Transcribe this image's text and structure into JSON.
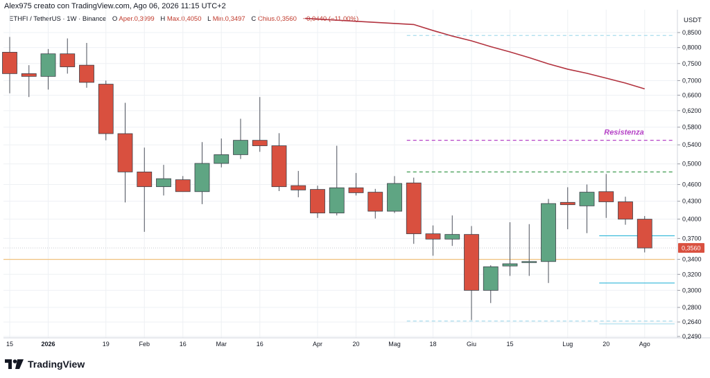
{
  "header": {
    "credit": "Alex975 creato con TradingView.com, Ago 06, 2026 11:15 UTC+2"
  },
  "legend": {
    "symbol": "ETHFI / TetherUS · 1W · Binance",
    "open_label": "O",
    "open_text": "Aper.0,3999",
    "high_label": "H",
    "high_text": "Max.0,4050",
    "low_label": "L",
    "low_text": "Min.0,3497",
    "close_label": "C",
    "close_text": "Chius.0,3560",
    "change_text": "−0,0440 (−11,00%)"
  },
  "currency": "USDT",
  "logo": {
    "text": "TradingView"
  },
  "colors": {
    "up": "#5fa583",
    "down": "#d9503f",
    "ma": "#b2323e",
    "price_line": "#d9503f",
    "resistance": "#b542c6",
    "green_dash": "#3e9b4f",
    "cyan": "#2fb6d9",
    "light_cyan": "#a8dcec",
    "orange": "#f1c27d"
  },
  "chart_data": {
    "type": "candlestick",
    "y_scale": "log",
    "ylim": [
      0.238,
      0.9
    ],
    "y_ticks": [
      {
        "label": "0,8500",
        "value": 0.85
      },
      {
        "label": "0,8000",
        "value": 0.8
      },
      {
        "label": "0,7500",
        "value": 0.75
      },
      {
        "label": "0,7000",
        "value": 0.7
      },
      {
        "label": "0,6600",
        "value": 0.66
      },
      {
        "label": "0,6200",
        "value": 0.62
      },
      {
        "label": "0,5800",
        "value": 0.58
      },
      {
        "label": "0,5400",
        "value": 0.54
      },
      {
        "label": "0,5000",
        "value": 0.5
      },
      {
        "label": "0,4600",
        "value": 0.46
      },
      {
        "label": "0,4300",
        "value": 0.43
      },
      {
        "label": "0,4000",
        "value": 0.4
      },
      {
        "label": "0,3700",
        "value": 0.37
      },
      {
        "label": "0,3400",
        "value": 0.34
      },
      {
        "label": "0,3200",
        "value": 0.32
      },
      {
        "label": "0,3000",
        "value": 0.3
      },
      {
        "label": "0,2800",
        "value": 0.28
      },
      {
        "label": "0,2640",
        "value": 0.264
      },
      {
        "label": "0,2490",
        "value": 0.249
      }
    ],
    "x_labels": [
      {
        "label": "15",
        "i": 0
      },
      {
        "label": "2026",
        "i": 2,
        "bold": true
      },
      {
        "label": "19",
        "i": 5
      },
      {
        "label": "Feb",
        "i": 7
      },
      {
        "label": "16",
        "i": 9
      },
      {
        "label": "Mar",
        "i": 11
      },
      {
        "label": "16",
        "i": 13
      },
      {
        "label": "Apr",
        "i": 16
      },
      {
        "label": "20",
        "i": 18
      },
      {
        "label": "Mag",
        "i": 20
      },
      {
        "label": "18",
        "i": 22
      },
      {
        "label": "Giu",
        "i": 24
      },
      {
        "label": "15",
        "i": 26
      },
      {
        "label": "Lug",
        "i": 29
      },
      {
        "label": "20",
        "i": 31
      },
      {
        "label": "Ago",
        "i": 33
      }
    ],
    "candles": [
      {
        "o": 0.785,
        "h": 0.835,
        "l": 0.665,
        "c": 0.72
      },
      {
        "o": 0.72,
        "h": 0.745,
        "l": 0.655,
        "c": 0.712
      },
      {
        "o": 0.712,
        "h": 0.795,
        "l": 0.675,
        "c": 0.78
      },
      {
        "o": 0.78,
        "h": 0.83,
        "l": 0.72,
        "c": 0.74
      },
      {
        "o": 0.745,
        "h": 0.815,
        "l": 0.68,
        "c": 0.695
      },
      {
        "o": 0.69,
        "h": 0.7,
        "l": 0.55,
        "c": 0.565
      },
      {
        "o": 0.565,
        "h": 0.64,
        "l": 0.428,
        "c": 0.484
      },
      {
        "o": 0.484,
        "h": 0.534,
        "l": 0.38,
        "c": 0.456
      },
      {
        "o": 0.456,
        "h": 0.498,
        "l": 0.44,
        "c": 0.471
      },
      {
        "o": 0.469,
        "h": 0.476,
        "l": 0.448,
        "c": 0.447
      },
      {
        "o": 0.447,
        "h": 0.546,
        "l": 0.425,
        "c": 0.501
      },
      {
        "o": 0.501,
        "h": 0.554,
        "l": 0.493,
        "c": 0.519
      },
      {
        "o": 0.519,
        "h": 0.6,
        "l": 0.51,
        "c": 0.55
      },
      {
        "o": 0.55,
        "h": 0.655,
        "l": 0.525,
        "c": 0.538
      },
      {
        "o": 0.538,
        "h": 0.566,
        "l": 0.448,
        "c": 0.456
      },
      {
        "o": 0.458,
        "h": 0.486,
        "l": 0.437,
        "c": 0.45
      },
      {
        "o": 0.451,
        "h": 0.458,
        "l": 0.402,
        "c": 0.41
      },
      {
        "o": 0.41,
        "h": 0.538,
        "l": 0.406,
        "c": 0.454
      },
      {
        "o": 0.454,
        "h": 0.482,
        "l": 0.44,
        "c": 0.445
      },
      {
        "o": 0.446,
        "h": 0.452,
        "l": 0.401,
        "c": 0.413
      },
      {
        "o": 0.413,
        "h": 0.476,
        "l": 0.41,
        "c": 0.462
      },
      {
        "o": 0.463,
        "h": 0.473,
        "l": 0.362,
        "c": 0.377
      },
      {
        "o": 0.377,
        "h": 0.39,
        "l": 0.345,
        "c": 0.369
      },
      {
        "o": 0.369,
        "h": 0.406,
        "l": 0.359,
        "c": 0.376
      },
      {
        "o": 0.376,
        "h": 0.389,
        "l": 0.266,
        "c": 0.3
      },
      {
        "o": 0.3,
        "h": 0.332,
        "l": 0.285,
        "c": 0.33
      },
      {
        "o": 0.331,
        "h": 0.395,
        "l": 0.318,
        "c": 0.334
      },
      {
        "o": 0.336,
        "h": 0.392,
        "l": 0.318,
        "c": 0.337
      },
      {
        "o": 0.337,
        "h": 0.434,
        "l": 0.309,
        "c": 0.426
      },
      {
        "o": 0.428,
        "h": 0.455,
        "l": 0.384,
        "c": 0.424
      },
      {
        "o": 0.422,
        "h": 0.46,
        "l": 0.378,
        "c": 0.446
      },
      {
        "o": 0.447,
        "h": 0.48,
        "l": 0.402,
        "c": 0.429
      },
      {
        "o": 0.429,
        "h": 0.438,
        "l": 0.391,
        "c": 0.4
      },
      {
        "o": 0.3999,
        "h": 0.405,
        "l": 0.3497,
        "c": 0.356
      }
    ],
    "moving_average": [
      {
        "i": 20,
        "v": 0.9
      },
      {
        "i": 21,
        "v": 0.878
      },
      {
        "i": 22,
        "v": 0.857
      },
      {
        "i": 23,
        "v": 0.838
      },
      {
        "i": 24,
        "v": 0.822
      },
      {
        "i": 25,
        "v": 0.803
      },
      {
        "i": 26,
        "v": 0.786
      },
      {
        "i": 27,
        "v": 0.768
      },
      {
        "i": 28,
        "v": 0.749
      },
      {
        "i": 29,
        "v": 0.733
      },
      {
        "i": 30,
        "v": 0.721
      },
      {
        "i": 31,
        "v": 0.707
      },
      {
        "i": 32,
        "v": 0.693
      },
      {
        "i": 33,
        "v": 0.677
      }
    ],
    "levels": [
      {
        "name": "resistance-line",
        "value": 0.55,
        "from_i": 21,
        "style": "dashed",
        "color": "resistance",
        "label": "Resistenza"
      },
      {
        "name": "green-level",
        "value": 0.484,
        "from_i": 21,
        "style": "dashed",
        "color": "green_dash"
      },
      {
        "name": "top-light-level",
        "value": 0.84,
        "from_i": 21,
        "style": "dashed",
        "color": "light_cyan"
      },
      {
        "name": "bottom-light-level",
        "value": 0.265,
        "from_i": 21,
        "style": "dashed",
        "color": "light_cyan"
      },
      {
        "name": "bottom-light-level-2",
        "value": 0.262,
        "from_i": 31,
        "style": "solid",
        "color": "light_cyan"
      },
      {
        "name": "cyan-level-upper",
        "value": 0.374,
        "from_i": 31,
        "style": "solid",
        "color": "cyan"
      },
      {
        "name": "cyan-level-lower",
        "value": 0.309,
        "from_i": 31,
        "style": "solid",
        "color": "cyan"
      },
      {
        "name": "orange-level",
        "value": 0.34,
        "from_i": -1,
        "style": "solid",
        "color": "orange"
      }
    ],
    "last_price": {
      "value": 0.356,
      "label": "0,3560"
    }
  }
}
